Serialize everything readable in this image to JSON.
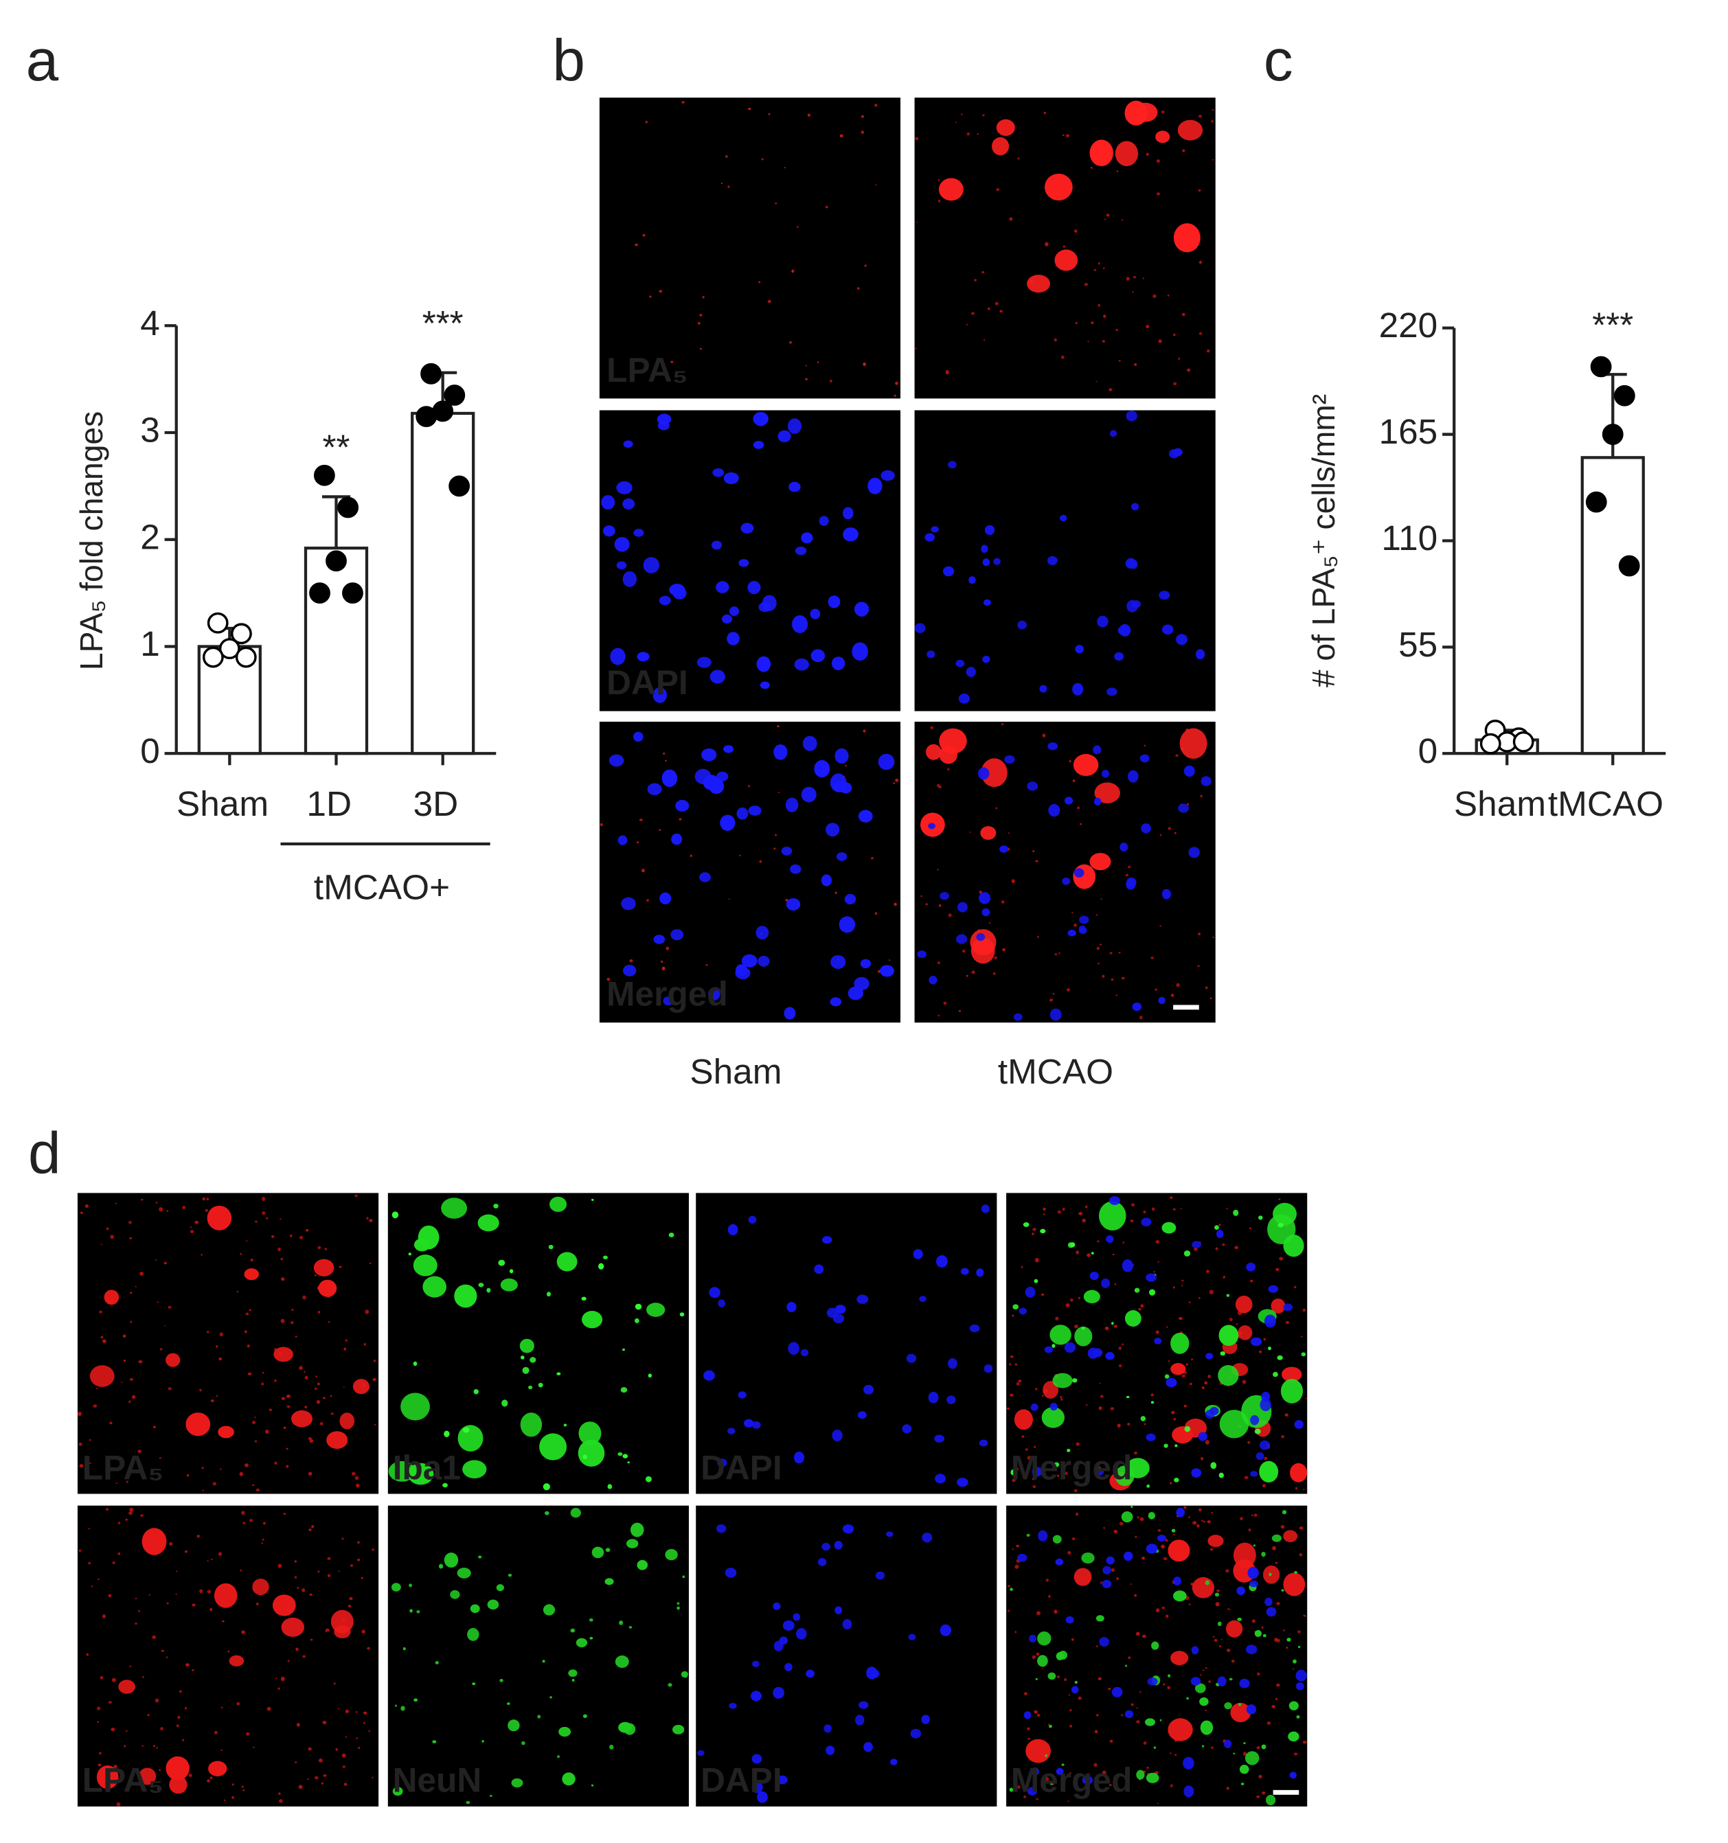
{
  "panel_labels": [
    "a",
    "b",
    "c",
    "d"
  ],
  "chart_data": [
    {
      "type": "bar",
      "y_label": "LPA₅ fold changes",
      "categories": [
        "Sham",
        "1D",
        "3D"
      ],
      "values": [
        1.0,
        1.92,
        3.18
      ],
      "errors": [
        0.17,
        0.48,
        0.38
      ],
      "points": [
        [
          1.22,
          1.12,
          0.98,
          0.9,
          0.9
        ],
        [
          2.6,
          2.3,
          1.8,
          1.5,
          1.5
        ],
        [
          3.55,
          3.35,
          3.2,
          3.15,
          2.5
        ]
      ],
      "point_style": [
        "open",
        "filled",
        "filled"
      ],
      "annotations": [
        null,
        "**",
        "***"
      ],
      "group_label": "tMCAO+",
      "ylim": [
        0,
        4
      ],
      "yticks": [
        0,
        1,
        2,
        3,
        4
      ],
      "color": "#ffffff"
    },
    {
      "type": "bar",
      "y_label": "# of LPA₅⁺ cells/mm²",
      "categories": [
        "Sham",
        "tMCAO"
      ],
      "values": [
        7,
        153
      ],
      "errors": [
        5,
        43
      ],
      "points": [
        [
          12,
          8,
          6,
          5,
          6
        ],
        [
          200,
          185,
          165,
          130,
          97
        ]
      ],
      "point_style": [
        "open",
        "filled"
      ],
      "annotations": [
        null,
        "***"
      ],
      "ylim": [
        0,
        220
      ],
      "yticks": [
        0,
        55,
        110,
        165,
        220
      ],
      "color": "#ffffff"
    }
  ],
  "panel_b": {
    "rows": [
      "LPA₅",
      "DAPI",
      "Merged"
    ],
    "columns": [
      "Sham",
      "tMCAO"
    ],
    "colors": [
      "#ff2a2a",
      "#a9bddc",
      "#ffff00"
    ]
  },
  "panel_d": {
    "rows": [
      [
        "LPA₅",
        "Iba1",
        "DAPI",
        "Merged"
      ],
      [
        "LPA₅",
        "NeuN",
        "DAPI",
        "Merged"
      ]
    ],
    "colors": [
      "#ff2a2a",
      "#dddddd",
      "#a9bddc",
      "#ffff00"
    ]
  }
}
